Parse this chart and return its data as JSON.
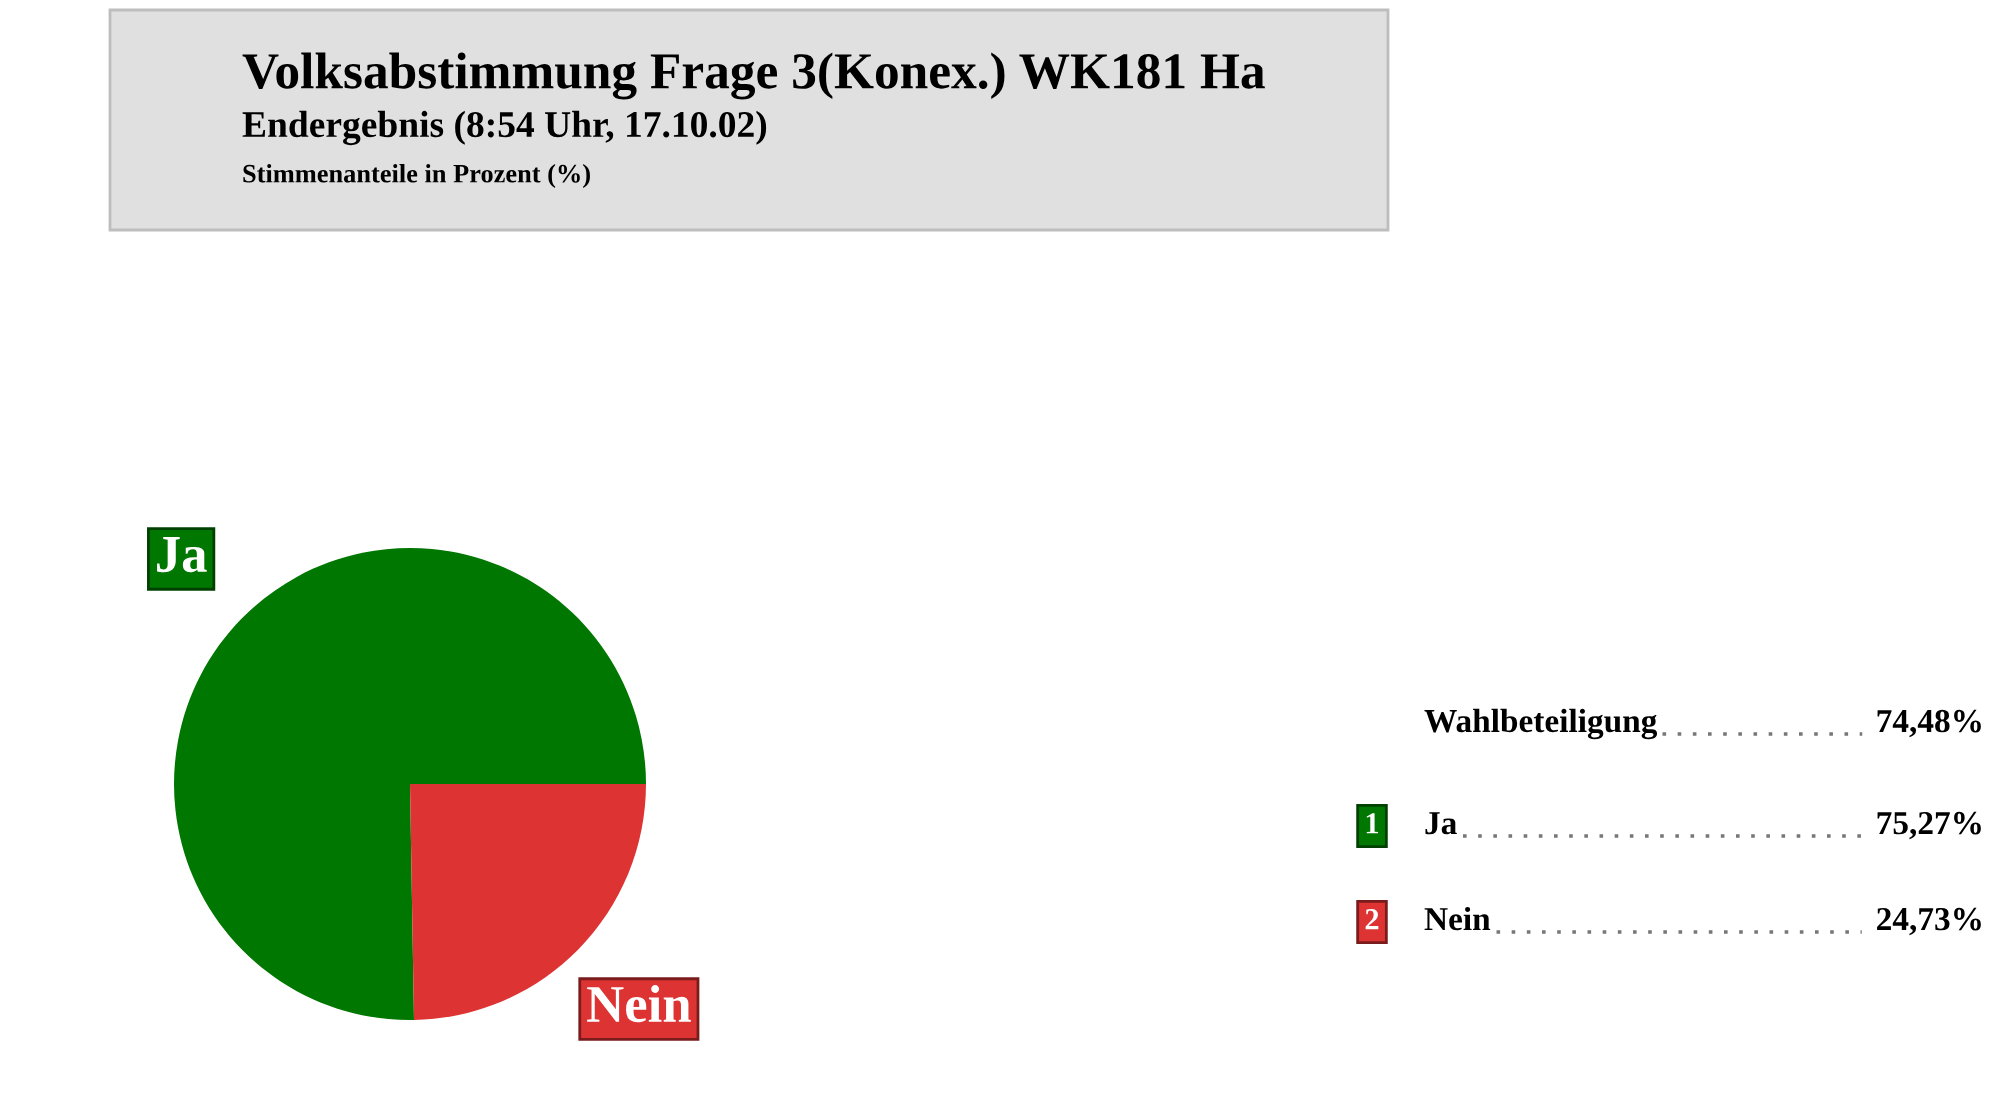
{
  "chart_data": {
    "type": "pie",
    "title": "Volksabstimmung Frage 3(Konex.) WK181 Ha",
    "subtitle": "Endergebnis (8:54 Uhr, 17.10.02)",
    "annotations": [
      "Stimmenanteile in Prozent (%)",
      "Wahlbeteiligung",
      "74,48%",
      "1",
      "2"
    ],
    "categories": [
      "Ja",
      "Nein"
    ],
    "values": [
      75.27,
      24.73
    ],
    "colors": [
      "#007700",
      "#dd3333"
    ],
    "value_labels": [
      "75,27%",
      "24,73%"
    ],
    "legend": "right"
  }
}
